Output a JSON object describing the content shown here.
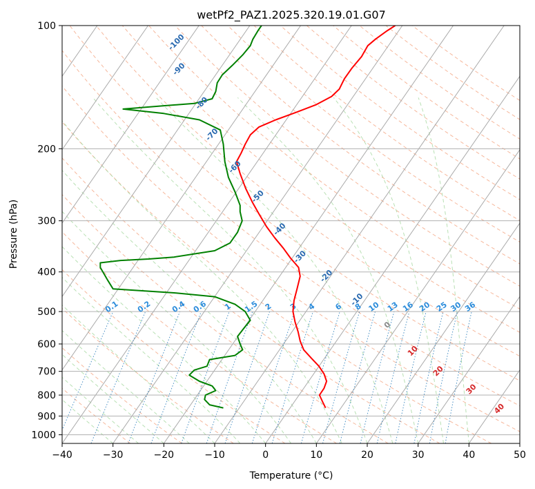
{
  "chart_data": {
    "type": "line",
    "title": "wetPf2_PAZ1.2025.320.19.01.G07",
    "xlabel": "Temperature (°C)",
    "ylabel": "Pressure (hPa)",
    "xlim": [
      -40,
      50
    ],
    "ylim": [
      1050,
      100
    ],
    "y_scale": "log",
    "x_ticks": [
      -40,
      -30,
      -20,
      -10,
      0,
      10,
      20,
      30,
      40,
      50
    ],
    "y_ticks": [
      100,
      200,
      300,
      400,
      500,
      600,
      700,
      800,
      900,
      1000
    ],
    "grid": true,
    "series": [
      {
        "color": "#ff0000",
        "points": [
          [
            11.8,
            860
          ],
          [
            11.2,
            830
          ],
          [
            10.6,
            800
          ],
          [
            11.5,
            770
          ],
          [
            12.0,
            740
          ],
          [
            11.5,
            710
          ],
          [
            10.5,
            680
          ],
          [
            9.0,
            650
          ],
          [
            7.5,
            620
          ],
          [
            6.8,
            590
          ],
          [
            6.4,
            560
          ],
          [
            5.8,
            530
          ],
          [
            5.4,
            500
          ],
          [
            5.6,
            470
          ],
          [
            6.2,
            440
          ],
          [
            6.8,
            410
          ],
          [
            6.5,
            390
          ],
          [
            4.9,
            370
          ],
          [
            3.5,
            350
          ],
          [
            1.8,
            330
          ],
          [
            0.2,
            310
          ],
          [
            -1.2,
            290
          ],
          [
            -2.6,
            270
          ],
          [
            -3.9,
            250
          ],
          [
            -5.0,
            230
          ],
          [
            -5.7,
            215
          ],
          [
            -4.8,
            205
          ],
          [
            -4.0,
            195
          ],
          [
            -3.0,
            185
          ],
          [
            -1.3,
            177
          ],
          [
            2.0,
            170
          ],
          [
            6.0,
            163
          ],
          [
            10.0,
            156
          ],
          [
            13.0,
            149
          ],
          [
            14.5,
            143
          ],
          [
            15.5,
            135
          ],
          [
            17.0,
            127
          ],
          [
            18.9,
            119
          ],
          [
            20.1,
            112
          ],
          [
            21.6,
            108
          ],
          [
            23.9,
            103
          ],
          [
            25.5,
            100
          ]
        ]
      },
      {
        "color": "#008000",
        "points": [
          [
            -8.3,
            860
          ],
          [
            -11.0,
            845
          ],
          [
            -12.0,
            820
          ],
          [
            -11.8,
            800
          ],
          [
            -9.8,
            780
          ],
          [
            -10.5,
            760
          ],
          [
            -13.0,
            740
          ],
          [
            -15.0,
            715
          ],
          [
            -14.0,
            695
          ],
          [
            -11.5,
            680
          ],
          [
            -11.0,
            655
          ],
          [
            -6.0,
            640
          ],
          [
            -4.5,
            620
          ],
          [
            -5.0,
            600
          ],
          [
            -5.5,
            575
          ],
          [
            -4.3,
            550
          ],
          [
            -3.0,
            525
          ],
          [
            -4.0,
            500
          ],
          [
            -6.0,
            480
          ],
          [
            -10.0,
            460
          ],
          [
            -18.0,
            450
          ],
          [
            -30.0,
            440
          ],
          [
            -31.0,
            420
          ],
          [
            -32.5,
            390
          ],
          [
            -32.5,
            380
          ],
          [
            -28.5,
            375
          ],
          [
            -23.0,
            372
          ],
          [
            -18.0,
            368
          ],
          [
            -10.0,
            355
          ],
          [
            -7.0,
            340
          ],
          [
            -5.5,
            320
          ],
          [
            -4.6,
            300
          ],
          [
            -5.0,
            285
          ],
          [
            -5.0,
            275
          ],
          [
            -6.0,
            255
          ],
          [
            -7.3,
            235
          ],
          [
            -8.0,
            215
          ],
          [
            -8.3,
            195
          ],
          [
            -8.9,
            180
          ],
          [
            -13.0,
            170
          ],
          [
            -20.0,
            164
          ],
          [
            -28.0,
            160
          ],
          [
            -20.0,
            157
          ],
          [
            -14.0,
            155
          ],
          [
            -10.5,
            151
          ],
          [
            -9.8,
            145
          ],
          [
            -9.5,
            138
          ],
          [
            -8.5,
            132
          ],
          [
            -6.5,
            125
          ],
          [
            -4.5,
            118
          ],
          [
            -3.0,
            112
          ],
          [
            -2.5,
            108
          ],
          [
            -1.5,
            103
          ],
          [
            -0.8,
            100
          ]
        ]
      }
    ],
    "temp_labels": [
      {
        "text": "-100",
        "x": -17.5,
        "p": 110
      },
      {
        "text": "-90",
        "x": -17,
        "p": 128
      },
      {
        "text": "-80",
        "x": -12.5,
        "p": 155
      },
      {
        "text": "-70",
        "x": -10.5,
        "p": 185
      },
      {
        "text": "-60",
        "x": -6,
        "p": 222
      },
      {
        "text": "-50",
        "x": -1.5,
        "p": 262
      },
      {
        "text": "-40",
        "x": 2.8,
        "p": 315
      },
      {
        "text": "-30",
        "x": 6.8,
        "p": 368
      },
      {
        "text": "-20",
        "x": 12,
        "p": 410
      },
      {
        "text": "-10",
        "x": 18,
        "p": 468
      },
      {
        "text": "0",
        "x": 24,
        "p": 540
      },
      {
        "text": "10",
        "x": 29,
        "p": 625
      },
      {
        "text": "20",
        "x": 34,
        "p": 700
      },
      {
        "text": "30",
        "x": 40.5,
        "p": 775
      },
      {
        "text": "40",
        "x": 46,
        "p": 865
      }
    ],
    "mixing_ratio_labels": [
      "0.1",
      "0.2",
      "0.4",
      "0.6",
      "1",
      "1.5",
      "2",
      "3",
      "4",
      "6",
      "8",
      "10",
      "13",
      "16",
      "20",
      "25",
      "30",
      "36"
    ]
  }
}
